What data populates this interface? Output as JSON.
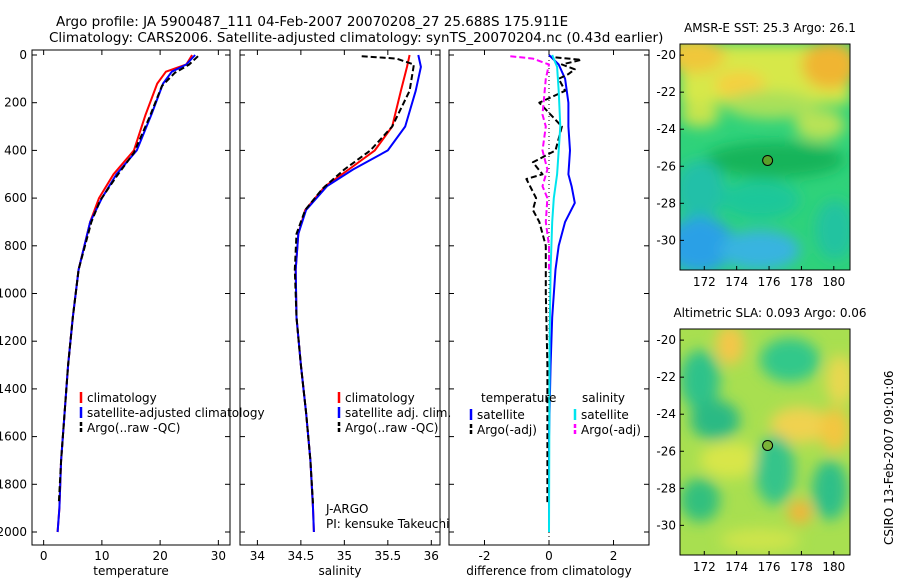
{
  "header": {
    "line1": "Argo profile: JA 5900487_111 04-Feb-2007 20070208_27 25.688S 175.911E",
    "line2": "Climatology: CARS2006. Satellite-adjusted climatology: synTS_20070204.nc (0.43d earlier)"
  },
  "colors": {
    "red": "#ff0000",
    "blue": "#0000ff",
    "black": "#000000",
    "cyan": "#00e5ee",
    "magenta": "#ff00ff"
  },
  "chart_data": [
    {
      "type": "line",
      "id": "temp",
      "xlabel": "temperature",
      "ylabel": "",
      "xlim": [
        -2,
        32
      ],
      "ylim": [
        2050,
        0
      ],
      "xticks": [
        0,
        10,
        20,
        30
      ],
      "yticks": [
        0,
        200,
        400,
        600,
        800,
        1000,
        1200,
        1400,
        1600,
        1800,
        2000
      ],
      "legend": [
        "climatology",
        "satellite-adjusted climatology",
        "Argo(..raw -QC)"
      ],
      "series": [
        {
          "name": "climatology",
          "color": "red",
          "dash": "",
          "width": 2,
          "x": [
            25.5,
            24.5,
            21.0,
            19.5,
            17.5,
            15.5,
            12.0,
            9.5,
            8.0,
            6.0,
            5.0,
            4.2,
            3.6,
            3.0,
            2.7,
            2.4
          ],
          "y": [
            0,
            40,
            70,
            120,
            250,
            400,
            500,
            600,
            700,
            900,
            1100,
            1300,
            1500,
            1700,
            1900,
            2000
          ]
        },
        {
          "name": "satellite-adjusted climatology",
          "color": "blue",
          "dash": "",
          "width": 2,
          "x": [
            26.0,
            24.5,
            22.0,
            20.5,
            18.5,
            16.0,
            12.5,
            10.0,
            8.0,
            6.0,
            5.0,
            4.2,
            3.6,
            3.0,
            2.7,
            2.4
          ],
          "y": [
            0,
            40,
            70,
            120,
            250,
            400,
            500,
            600,
            700,
            900,
            1100,
            1300,
            1500,
            1700,
            1900,
            2000
          ]
        },
        {
          "name": "Argo(..raw -QC)",
          "color": "black",
          "dash": "6,3",
          "width": 2,
          "x": [
            26.5,
            25.0,
            22.5,
            20.3,
            18.2,
            15.5,
            12.5,
            9.7,
            8.2,
            6.0,
            5.0,
            4.2,
            3.6,
            3.0,
            2.6
          ],
          "y": [
            5,
            40,
            75,
            130,
            260,
            410,
            510,
            610,
            700,
            900,
            1100,
            1300,
            1500,
            1700,
            1880
          ]
        }
      ]
    },
    {
      "type": "line",
      "id": "salt",
      "xlabel": "salinity",
      "ylabel": "",
      "xlim": [
        33.8,
        36.1
      ],
      "ylim": [
        2050,
        0
      ],
      "xticks": [
        34,
        34.5,
        35,
        35.5,
        36
      ],
      "xtick_labels": [
        "34",
        "34.5",
        "35",
        "35.5",
        "36"
      ],
      "legend": [
        "climatology",
        "satellite adj. clim.",
        "Argo(..raw -QC)"
      ],
      "annotations": [
        "J-ARGO",
        "PI: kensuke Takeuchi"
      ],
      "series": [
        {
          "name": "climatology",
          "color": "red",
          "dash": "",
          "width": 2,
          "x": [
            35.75,
            35.72,
            35.65,
            35.55,
            35.35,
            35.05,
            34.78,
            34.55,
            34.47,
            34.44,
            34.45,
            34.5,
            34.56,
            34.61,
            34.64,
            34.65
          ],
          "y": [
            0,
            50,
            150,
            300,
            400,
            480,
            550,
            650,
            750,
            900,
            1100,
            1300,
            1500,
            1700,
            1900,
            2000
          ]
        },
        {
          "name": "satellite adj. clim.",
          "color": "blue",
          "dash": "",
          "width": 2,
          "x": [
            35.85,
            35.88,
            35.82,
            35.7,
            35.5,
            35.1,
            34.8,
            34.56,
            34.47,
            34.44,
            34.45,
            34.5,
            34.56,
            34.61,
            34.64,
            34.65
          ],
          "y": [
            0,
            50,
            150,
            300,
            400,
            480,
            550,
            650,
            750,
            900,
            1100,
            1300,
            1500,
            1700,
            1900,
            2000
          ]
        },
        {
          "name": "Argo(..raw -QC)",
          "color": "black",
          "dash": "6,3",
          "width": 2,
          "x": [
            35.2,
            35.6,
            35.8,
            35.75,
            35.55,
            35.3,
            35.0,
            34.75,
            34.55,
            34.45,
            34.43,
            34.45,
            34.5,
            34.56,
            34.61,
            34.64
          ],
          "y": [
            5,
            15,
            40,
            150,
            300,
            400,
            480,
            560,
            650,
            750,
            900,
            1100,
            1300,
            1500,
            1700,
            1880
          ]
        }
      ]
    },
    {
      "type": "line",
      "id": "diff",
      "xlabel": "difference from climatology",
      "ylabel": "",
      "xlim": [
        -3.1,
        3.1
      ],
      "ylim": [
        2050,
        0
      ],
      "xticks": [
        -2,
        0,
        2
      ],
      "legend_groups": [
        {
          "title": "temperature",
          "items": [
            "satellite",
            "Argo(-adj)"
          ]
        },
        {
          "title": "salinity",
          "items": [
            "satellite",
            "Argo(-adj)"
          ]
        }
      ],
      "series": [
        {
          "name": "temperature satellite",
          "color": "blue",
          "dash": "",
          "width": 2,
          "x": [
            0.0,
            0.3,
            0.5,
            0.6,
            0.6,
            0.65,
            0.6,
            0.7,
            0.8,
            0.5,
            0.3,
            0.2,
            0.1,
            0.05,
            0.0,
            0.0
          ],
          "y": [
            0,
            40,
            100,
            200,
            300,
            400,
            500,
            550,
            620,
            700,
            800,
            900,
            1100,
            1300,
            1600,
            2000
          ]
        },
        {
          "name": "temperature Argo(-adj)",
          "color": "black",
          "dash": "6,3",
          "width": 2,
          "x": [
            0.2,
            1.0,
            0.4,
            0.8,
            0.6,
            0.3,
            0.5,
            -0.3,
            0.4,
            0.2,
            -0.5,
            -0.2,
            -0.7,
            -0.4,
            -0.5,
            -0.3,
            -0.1,
            -0.1,
            -0.05,
            -0.05
          ],
          "y": [
            10,
            20,
            40,
            60,
            80,
            100,
            150,
            200,
            300,
            400,
            450,
            500,
            520,
            600,
            650,
            700,
            800,
            1000,
            1300,
            1880
          ]
        },
        {
          "name": "salinity satellite",
          "color": "cyan",
          "dash": "",
          "width": 2,
          "x": [
            0.1,
            0.25,
            0.3,
            0.35,
            0.3,
            0.25,
            0.15,
            0.1,
            0.05,
            0.02,
            0.0
          ],
          "y": [
            0,
            50,
            150,
            300,
            400,
            500,
            600,
            700,
            900,
            1200,
            2000
          ]
        },
        {
          "name": "salinity Argo(-adj)",
          "color": "magenta",
          "dash": "6,3",
          "width": 2,
          "x": [
            -1.2,
            -0.5,
            0.0,
            -0.1,
            -0.2,
            -0.1,
            -0.2,
            -0.05,
            -0.2,
            -0.05,
            -0.1,
            0.0,
            0.0
          ],
          "y": [
            5,
            15,
            40,
            100,
            250,
            300,
            400,
            480,
            550,
            600,
            700,
            800,
            900
          ]
        }
      ]
    },
    {
      "type": "heatmap",
      "id": "sst",
      "title": "AMSR-E SST: 25.3 Argo: 26.1",
      "xlim": [
        170.5,
        181
      ],
      "ylim": [
        -31.6,
        -19.4
      ],
      "xticks": [
        172,
        174,
        176,
        178,
        180
      ],
      "yticks": [
        -20,
        -22,
        -24,
        -26,
        -28,
        -30
      ],
      "marker": {
        "x": 175.911,
        "y": -25.688
      }
    },
    {
      "type": "heatmap",
      "id": "sla",
      "title": "Altimetric SLA: 0.093 Argo: 0.06",
      "xlim": [
        170.5,
        181
      ],
      "ylim": [
        -31.6,
        -19.4
      ],
      "xticks": [
        172,
        174,
        176,
        178,
        180
      ],
      "yticks": [
        -20,
        -22,
        -24,
        -26,
        -28,
        -30
      ],
      "marker": {
        "x": 175.911,
        "y": -25.688
      }
    }
  ],
  "credit": "CSIRO 13-Feb-2007 09:01:06"
}
